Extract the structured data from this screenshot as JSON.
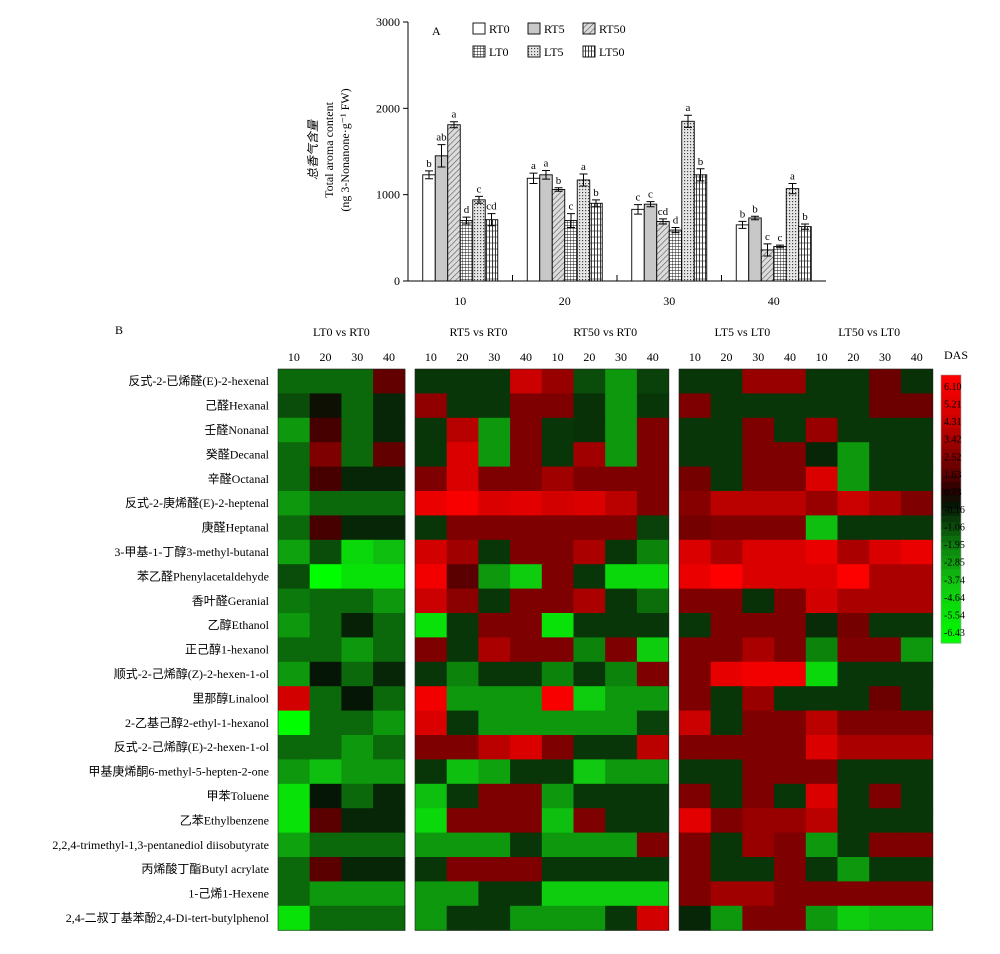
{
  "chart_data": [
    {
      "type": "bar",
      "panel_label": "A",
      "ylabel_cn": "总香气含量",
      "ylabel_en": "Total aroma content",
      "ylabel_unit": "(ng 3-Nonanone·g⁻¹ FW)",
      "ylim": [
        0,
        3000
      ],
      "yticks": [
        0,
        1000,
        2000,
        3000
      ],
      "categories": [
        "10",
        "20",
        "30",
        "40"
      ],
      "series": [
        {
          "name": "RT0",
          "pattern": "open",
          "values": [
            1230,
            1190,
            830,
            650
          ],
          "errors": [
            45,
            60,
            55,
            40
          ],
          "letters": [
            "b",
            "a",
            "c",
            "b"
          ]
        },
        {
          "name": "RT5",
          "pattern": "gray",
          "values": [
            1450,
            1230,
            890,
            730
          ],
          "errors": [
            130,
            50,
            30,
            20
          ],
          "letters": [
            "ab",
            "a",
            "c",
            "b"
          ]
        },
        {
          "name": "RT50",
          "pattern": "diag",
          "values": [
            1810,
            1060,
            690,
            360
          ],
          "errors": [
            35,
            20,
            30,
            70
          ],
          "letters": [
            "a",
            "b",
            "cd",
            "c"
          ]
        },
        {
          "name": "LT0",
          "pattern": "grid",
          "values": [
            700,
            700,
            590,
            400
          ],
          "errors": [
            40,
            80,
            30,
            15
          ],
          "letters": [
            "d",
            "c",
            "d",
            "c"
          ]
        },
        {
          "name": "LT5",
          "pattern": "dots",
          "values": [
            940,
            1170,
            1850,
            1070
          ],
          "errors": [
            40,
            70,
            70,
            60
          ],
          "letters": [
            "c",
            "a",
            "a",
            "a"
          ]
        },
        {
          "name": "LT50",
          "pattern": "vert",
          "values": [
            710,
            900,
            1230,
            630
          ],
          "errors": [
            70,
            40,
            70,
            30
          ],
          "letters": [
            "cd",
            "b",
            "b",
            "b"
          ]
        }
      ]
    },
    {
      "type": "heatmap",
      "panel_label": "B",
      "legend_title": "DAS",
      "legend_ticks": [
        "6.10",
        "5.21",
        "4.31",
        "3.42",
        "2.52",
        "1.63",
        "0.73",
        "-0.16",
        "-1.06",
        "-1.95",
        "-2.85",
        "-3.74",
        "-4.64",
        "-5.54",
        "-6.43"
      ],
      "value_range": [
        -6.43,
        6.1
      ],
      "column_days": [
        "10",
        "20",
        "30",
        "40"
      ],
      "comparisons": [
        "LT0 vs RT0",
        "RT5 vs RT0",
        "RT50 vs RT0",
        "LT5 vs LT0",
        "LT50 vs LT0"
      ],
      "rows": [
        "反式-2-已烯醛(E)-2-hexenal",
        "己醛Hexanal",
        "壬醛Nonanal",
        "癸醛Decanal",
        "辛醛Octanal",
        "反式-2-庚烯醛(E)-2-heptenal",
        "庚醛Heptanal",
        "3-甲基-1-丁醇3-methyl-butanal",
        "苯乙醛Phenylacetaldehyde",
        "香叶醛Geranial",
        "乙醇Ethanol",
        "正己醇1-hexanol",
        "顺式-2-己烯醇(Z)-2-hexen-1-ol",
        "里那醇Linalool",
        "2-乙基己醇2-ethyl-1-hexanol",
        "反式-2-己烯醇(E)-2-hexen-1-ol",
        "甲基庚烯酮6-methyl-5-hepten-2-one",
        "甲苯Toluene",
        "乙苯Ethylbenzene",
        "2,2,4-trimethyl-1,3-pentanediol diisobutyrate",
        "丙烯酸丁酯Butyl acrylate",
        "1-己烯1-Hexene",
        "2,4-二叔丁基苯酚2,4-Di-tert-butylphenol"
      ],
      "values": [
        [
          -1.5,
          -1.5,
          -1.5,
          1.6,
          -0.6,
          -0.6,
          -0.6,
          4.0,
          2.8,
          -1.0,
          -2.5,
          -0.8,
          -0.6,
          -0.6,
          2.8,
          2.8,
          -0.6,
          -0.6,
          1.8,
          -0.5
        ],
        [
          -1.0,
          0.2,
          -1.5,
          -0.3,
          2.6,
          -0.6,
          -0.6,
          2.2,
          2.2,
          -0.5,
          -2.5,
          -0.6,
          2.2,
          -0.6,
          -0.6,
          -0.6,
          -0.6,
          -0.6,
          1.8,
          1.8
        ],
        [
          -2.5,
          1.2,
          -1.5,
          -0.3,
          -0.6,
          3.5,
          -2.5,
          2.2,
          -0.6,
          -0.5,
          -2.5,
          2.2,
          -0.6,
          -0.6,
          2.2,
          -0.6,
          2.8,
          -0.6,
          -0.6,
          -0.6
        ],
        [
          -1.5,
          2.2,
          -1.5,
          1.6,
          -0.6,
          4.5,
          -2.5,
          2.2,
          -0.6,
          3.0,
          -2.5,
          2.2,
          -0.6,
          -0.6,
          2.2,
          2.2,
          -0.3,
          -2.5,
          -0.6,
          -0.6
        ],
        [
          -1.5,
          1.2,
          -0.3,
          -0.3,
          2.2,
          4.5,
          2.2,
          2.2,
          3.0,
          2.2,
          2.2,
          2.2,
          2.0,
          -0.6,
          2.2,
          2.2,
          4.5,
          -2.5,
          -0.6,
          -0.6
        ],
        [
          -2.5,
          -1.5,
          -1.5,
          -1.5,
          5.2,
          5.8,
          4.5,
          4.8,
          4.2,
          4.5,
          3.6,
          2.2,
          2.4,
          3.6,
          3.6,
          3.6,
          2.8,
          4.0,
          3.2,
          2.2
        ],
        [
          -1.5,
          1.2,
          -0.3,
          -0.3,
          -0.6,
          2.2,
          2.2,
          2.2,
          2.2,
          2.2,
          2.2,
          -0.8,
          2.0,
          2.2,
          2.2,
          2.2,
          -3.5,
          -0.6,
          -0.6,
          -0.6
        ],
        [
          -2.8,
          -1.0,
          -4.5,
          -3.5,
          4.2,
          3.0,
          -0.6,
          2.2,
          2.2,
          3.2,
          -0.6,
          -2.0,
          4.5,
          3.2,
          4.5,
          4.5,
          5.2,
          3.2,
          4.5,
          5.2
        ],
        [
          -1.0,
          -6.4,
          -5.0,
          -5.0,
          5.5,
          1.5,
          -2.5,
          -4.0,
          2.2,
          -0.6,
          -4.5,
          -4.5,
          5.2,
          6.1,
          4.5,
          4.5,
          4.5,
          6.0,
          3.2,
          3.2
        ],
        [
          -1.8,
          -1.5,
          -1.5,
          -2.5,
          4.0,
          2.5,
          -0.6,
          2.2,
          2.2,
          3.2,
          -0.6,
          -1.6,
          2.2,
          2.2,
          -0.5,
          2.2,
          4.2,
          3.2,
          3.2,
          3.2
        ],
        [
          -2.5,
          -1.5,
          -0.2,
          -1.5,
          -5.0,
          -0.6,
          2.2,
          2.2,
          -5.0,
          -0.6,
          -0.6,
          -0.6,
          -0.6,
          2.2,
          2.2,
          2.2,
          -0.4,
          2.0,
          -0.6,
          -0.6
        ],
        [
          -1.5,
          -1.5,
          -2.5,
          -1.5,
          2.2,
          -0.6,
          3.2,
          2.2,
          2.2,
          -2.0,
          2.2,
          -4.0,
          2.2,
          2.2,
          3.2,
          2.2,
          -2.0,
          2.2,
          2.2,
          -2.5
        ],
        [
          -2.5,
          0.0,
          -1.5,
          -0.3,
          -0.6,
          -2.0,
          -0.6,
          -0.6,
          -2.0,
          -0.6,
          -2.0,
          2.2,
          2.2,
          5.0,
          5.5,
          5.5,
          -4.5,
          -0.6,
          -0.6,
          -0.6
        ],
        [
          4.2,
          -1.5,
          0.0,
          -1.5,
          5.5,
          -2.5,
          -2.5,
          -2.5,
          5.8,
          -4.0,
          -2.5,
          -2.5,
          2.2,
          -0.6,
          2.8,
          -0.6,
          -0.6,
          -0.6,
          1.8,
          -0.6
        ],
        [
          -6.4,
          -1.5,
          -1.5,
          -2.5,
          4.5,
          -0.6,
          -2.5,
          -2.5,
          -2.5,
          -2.5,
          -2.5,
          -0.8,
          4.0,
          -0.6,
          2.2,
          2.2,
          3.6,
          2.2,
          2.2,
          2.2
        ],
        [
          -1.5,
          -1.5,
          -2.5,
          -1.5,
          2.2,
          2.2,
          3.6,
          4.5,
          2.2,
          -0.6,
          -0.6,
          3.6,
          2.2,
          2.2,
          2.2,
          2.2,
          4.5,
          3.2,
          3.2,
          3.2
        ],
        [
          -2.5,
          -3.5,
          -2.5,
          -2.5,
          -0.6,
          -3.5,
          -2.8,
          -0.6,
          -0.6,
          -3.8,
          -2.5,
          -2.5,
          -0.6,
          -0.6,
          2.2,
          2.2,
          2.2,
          -0.6,
          -0.6,
          -0.6
        ],
        [
          -5.0,
          0.0,
          -1.5,
          -0.3,
          -3.5,
          -0.6,
          2.2,
          2.2,
          -2.5,
          -0.6,
          -0.6,
          -0.6,
          2.2,
          -0.6,
          2.2,
          -0.6,
          4.5,
          -0.6,
          2.2,
          -0.6
        ],
        [
          -5.0,
          1.5,
          -0.3,
          -0.3,
          -4.5,
          2.2,
          2.2,
          2.2,
          -3.5,
          2.2,
          -0.6,
          -0.6,
          4.8,
          2.2,
          2.8,
          2.8,
          3.6,
          -0.6,
          -0.6,
          -0.6
        ],
        [
          -2.8,
          -1.5,
          -1.5,
          -1.5,
          -2.5,
          -2.5,
          -2.5,
          -0.6,
          -2.5,
          -2.5,
          -2.5,
          2.2,
          2.2,
          -0.6,
          2.8,
          2.2,
          -2.5,
          -0.6,
          2.2,
          2.2
        ],
        [
          -1.5,
          1.5,
          -0.3,
          -0.3,
          -0.6,
          2.2,
          2.2,
          2.2,
          -0.6,
          -0.6,
          -0.6,
          -0.6,
          2.2,
          -0.6,
          -0.6,
          2.2,
          -0.6,
          -2.5,
          -0.6,
          -0.6
        ],
        [
          -1.5,
          -2.5,
          -2.5,
          -2.5,
          -2.5,
          -2.5,
          -0.6,
          -0.6,
          -4.0,
          -4.0,
          -4.0,
          -4.0,
          2.2,
          3.0,
          3.0,
          2.2,
          2.2,
          2.2,
          2.2,
          2.2
        ],
        [
          -5.0,
          -1.5,
          -1.5,
          -1.5,
          -2.5,
          -0.6,
          -0.6,
          -2.5,
          -2.5,
          -2.5,
          -0.6,
          4.2,
          -0.3,
          -2.5,
          2.2,
          2.2,
          -2.5,
          -4.0,
          -3.5,
          -3.5
        ]
      ]
    }
  ]
}
